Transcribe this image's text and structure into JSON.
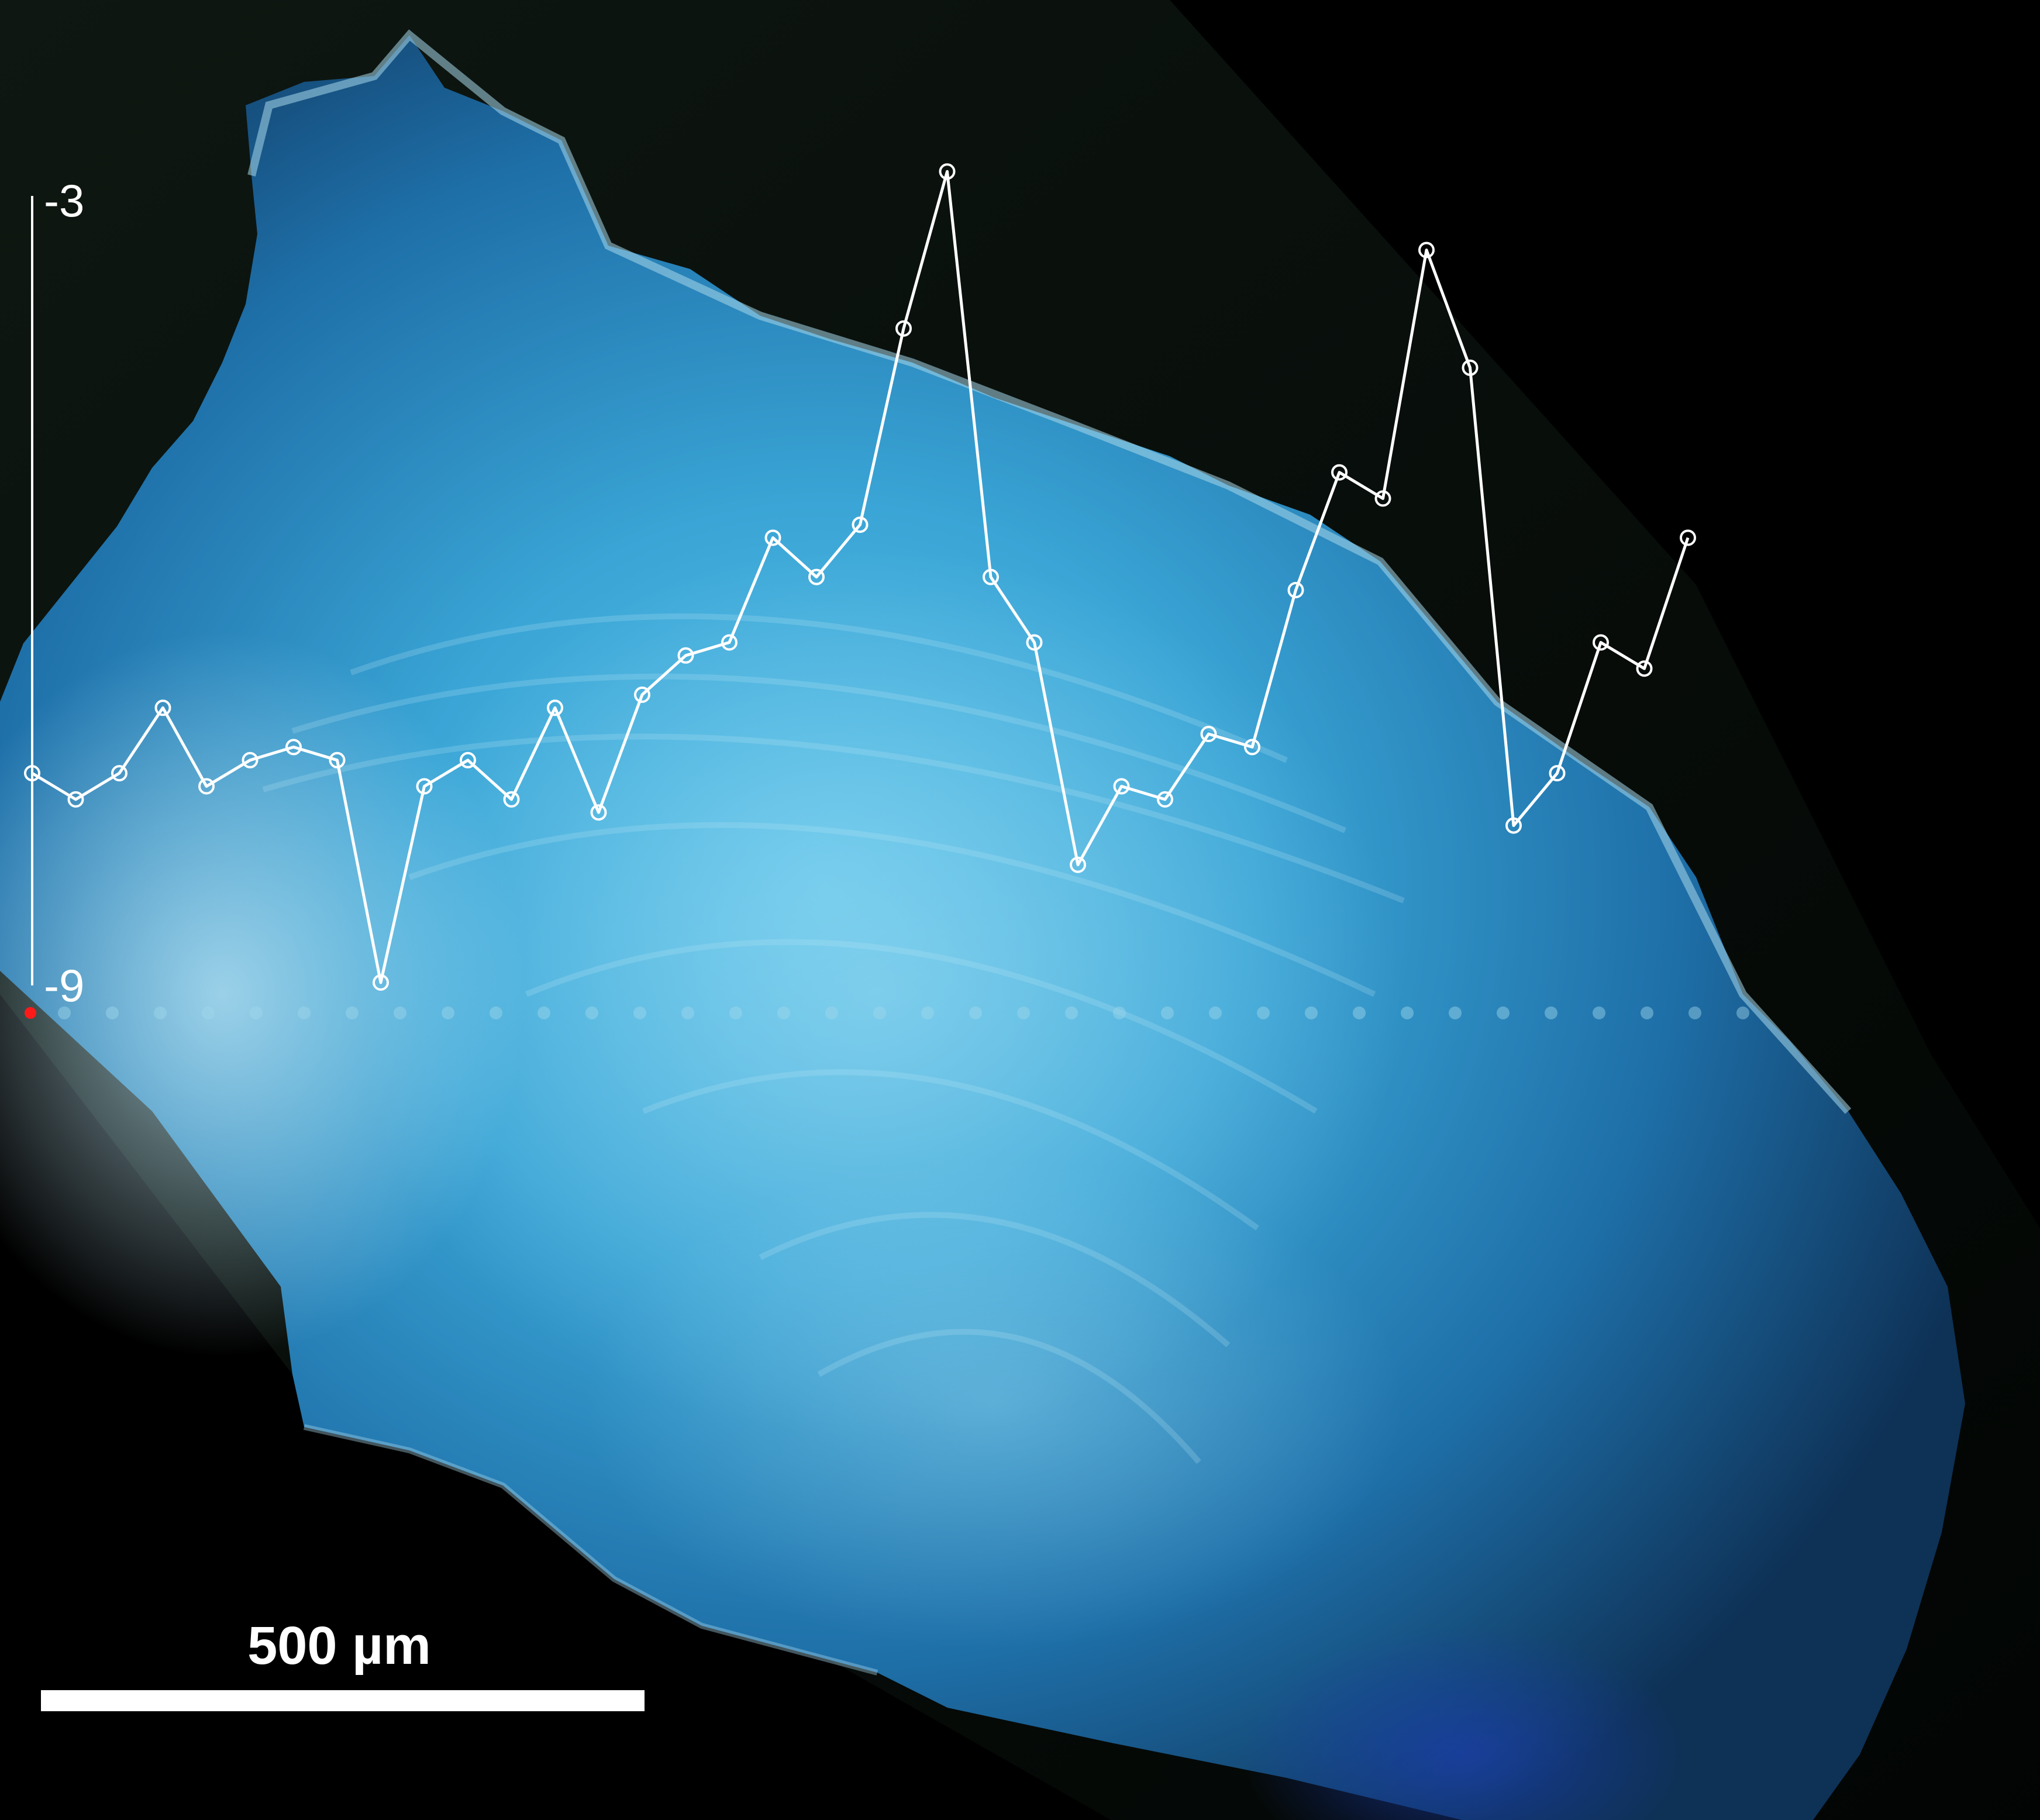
{
  "overlay": {
    "y_axis": {
      "top_label": "-3",
      "bottom_label": "-9",
      "min": -9,
      "max": -3
    },
    "series": [
      -7.4,
      -7.6,
      -7.4,
      -6.9,
      -7.5,
      -7.3,
      -7.2,
      -7.3,
      -9.0,
      -7.5,
      -7.3,
      -7.6,
      -6.9,
      -7.7,
      -6.8,
      -6.5,
      -6.4,
      -5.6,
      -5.9,
      -5.5,
      -4.0,
      -2.8,
      -5.9,
      -6.4,
      -8.1,
      -7.5,
      -7.6,
      -7.1,
      -7.2,
      -6.0,
      -5.1,
      -5.3,
      -3.4,
      -4.3,
      -7.8,
      -7.4,
      -6.4,
      -6.6,
      -5.6
    ],
    "marker_color": "#ff1a1a",
    "line_color": "#ffffff"
  },
  "scale_bar": {
    "label": "500 µm",
    "value": 500,
    "unit": "µm"
  },
  "colors": {
    "background": "#000000",
    "specimen_light": "#6ac6e8",
    "specimen_mid": "#2d8fc3",
    "specimen_dark": "#123e6b",
    "rim": "#a8d7ea"
  }
}
